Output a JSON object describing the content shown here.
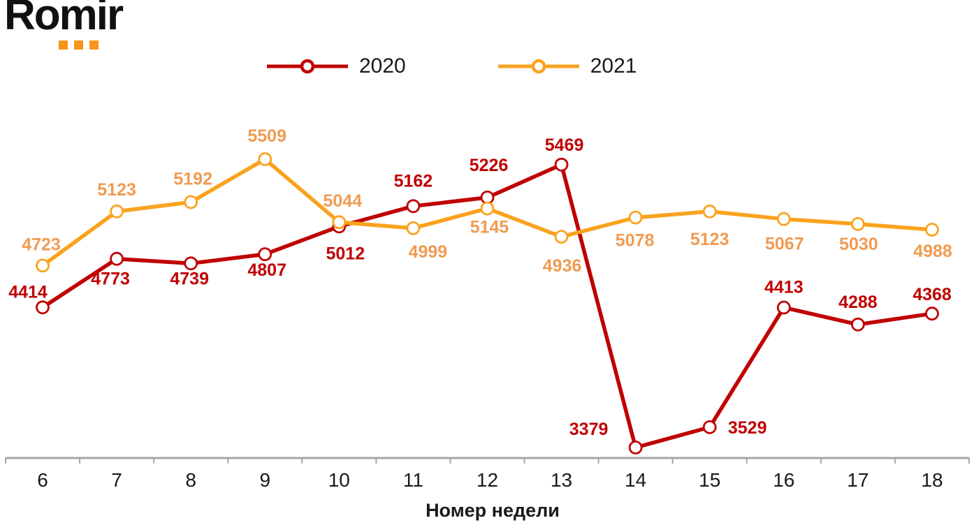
{
  "logo": {
    "text": "Romir"
  },
  "colors": {
    "series_2020": "#C00000",
    "series_2021": "#FAA21E",
    "label_2020": "#C00000",
    "label_2021": "#F09B52",
    "axis": "#A6A6A6",
    "tick_text": "#1a1a1a",
    "logo_dots": "#F7941D"
  },
  "chart_data": {
    "type": "line",
    "title": "",
    "xlabel": "Номер недели",
    "ylabel": "",
    "categories": [
      6,
      7,
      8,
      9,
      10,
      11,
      12,
      13,
      14,
      15,
      16,
      17,
      18
    ],
    "legend_position": "top",
    "grid": false,
    "y_axis_visible": false,
    "ylim": [
      3290,
      5865
    ],
    "marker": "open-circle",
    "series": [
      {
        "name": "2020",
        "color_key": "series_2020",
        "label_color_key": "label_2020",
        "values": [
          4414,
          4773,
          4739,
          4807,
          5012,
          5162,
          5226,
          5469,
          3379,
          3529,
          4413,
          4288,
          4368
        ],
        "label_offsets": [
          [
            -21,
            -14
          ],
          [
            -9,
            37
          ],
          [
            -2,
            30
          ],
          [
            3,
            31
          ],
          [
            9,
            47
          ],
          [
            0,
            -28
          ],
          [
            2,
            -38
          ],
          [
            4,
            -20
          ],
          [
            -67,
            -18
          ],
          [
            54,
            9
          ],
          [
            0,
            -21
          ],
          [
            0,
            -24
          ],
          [
            0,
            -19
          ]
        ]
      },
      {
        "name": "2021",
        "color_key": "series_2021",
        "label_color_key": "label_2021",
        "values": [
          4723,
          5123,
          5192,
          5509,
          5044,
          4999,
          5145,
          4936,
          5078,
          5123,
          5067,
          5030,
          4988
        ],
        "label_offsets": [
          [
            -2,
            -22
          ],
          [
            0,
            -23
          ],
          [
            3,
            -25
          ],
          [
            3,
            -25
          ],
          [
            5,
            -22
          ],
          [
            21,
            42
          ],
          [
            3,
            35
          ],
          [
            1,
            50
          ],
          [
            -1,
            41
          ],
          [
            0,
            48
          ],
          [
            1,
            44
          ],
          [
            1,
            37
          ],
          [
            1,
            39
          ]
        ]
      }
    ]
  }
}
